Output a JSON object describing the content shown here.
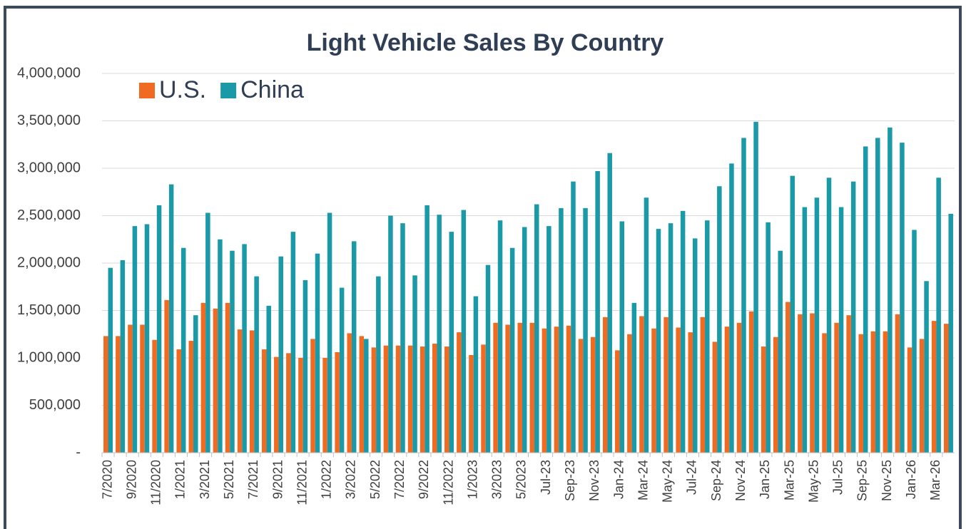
{
  "chart_data": {
    "type": "bar",
    "title": "Light Vehicle Sales By Country",
    "categories": [
      "7/2020",
      null,
      "9/2020",
      null,
      "11/2020",
      null,
      "1/2021",
      null,
      "3/2021",
      null,
      "5/2021",
      null,
      "7/2021",
      null,
      "9/2021",
      null,
      "11/2021",
      null,
      "1/2022",
      null,
      "3/2022",
      null,
      "5/2022",
      null,
      "7/2022",
      null,
      "9/2022",
      null,
      "11/2022",
      null,
      "1/2023",
      null,
      "3/2023",
      null,
      "5/2023",
      null,
      "Jul-23",
      null,
      "Sep-23",
      null,
      "Nov-23",
      null,
      "Jan-24",
      null,
      "Mar-24",
      null,
      "May-24",
      null,
      "Jul-24",
      null,
      "Sep-24",
      null,
      "Nov-24",
      null,
      "Jan-25",
      null,
      "Mar-25",
      null,
      "May-25",
      null,
      "Jul-25",
      null,
      "Sep-25",
      null,
      "Nov-25",
      null,
      "Jan-26",
      null,
      "Mar-26",
      null
    ],
    "series": [
      {
        "name": "U.S.",
        "color": "#f06a22",
        "values": [
          1230000,
          1230000,
          1350000,
          1350000,
          1190000,
          1610000,
          1090000,
          1180000,
          1580000,
          1520000,
          1580000,
          1300000,
          1290000,
          1090000,
          1010000,
          1050000,
          1000000,
          1200000,
          1000000,
          1060000,
          1260000,
          1230000,
          1110000,
          1130000,
          1130000,
          1130000,
          1120000,
          1150000,
          1120000,
          1270000,
          1030000,
          1140000,
          1370000,
          1350000,
          1370000,
          1370000,
          1310000,
          1330000,
          1340000,
          1200000,
          1220000,
          1430000,
          1080000,
          1250000,
          1440000,
          1310000,
          1430000,
          1320000,
          1270000,
          1430000,
          1170000,
          1330000,
          1370000,
          1490000,
          1120000,
          1220000,
          1590000,
          1460000,
          1470000,
          1260000,
          1370000,
          1450000,
          1250000,
          1280000,
          1280000,
          1460000,
          1110000,
          1200000,
          1390000,
          1360000
        ]
      },
      {
        "name": "China",
        "color": "#1a9aa6",
        "values": [
          1950000,
          2030000,
          2390000,
          2410000,
          2610000,
          2830000,
          2160000,
          1450000,
          2530000,
          2250000,
          2130000,
          2200000,
          1860000,
          1550000,
          2070000,
          2330000,
          1820000,
          2100000,
          2530000,
          1740000,
          2230000,
          1200000,
          1860000,
          2500000,
          2420000,
          1870000,
          2610000,
          2510000,
          2330000,
          2560000,
          1650000,
          1980000,
          2450000,
          2160000,
          2380000,
          2620000,
          2390000,
          2580000,
          2860000,
          2580000,
          2970000,
          3160000,
          2440000,
          1580000,
          2690000,
          2360000,
          2420000,
          2550000,
          2260000,
          2450000,
          2810000,
          3050000,
          3320000,
          3490000,
          2430000,
          2130000,
          2920000,
          2590000,
          2690000,
          2900000,
          2590000,
          2860000,
          3230000,
          3320000,
          3430000,
          3270000,
          2350000,
          1810000,
          2900000,
          2520000
        ]
      }
    ],
    "ylim": [
      0,
      4000000
    ],
    "yticks": [
      {
        "value": 0,
        "label": "-"
      },
      {
        "value": 500000,
        "label": "500,000"
      },
      {
        "value": 1000000,
        "label": "1,000,000"
      },
      {
        "value": 1500000,
        "label": "1,500,000"
      },
      {
        "value": 2000000,
        "label": "2,000,000"
      },
      {
        "value": 2500000,
        "label": "2,500,000"
      },
      {
        "value": 3000000,
        "label": "3,000,000"
      },
      {
        "value": 3500000,
        "label": "3,500,000"
      },
      {
        "value": 4000000,
        "label": "4,000,000"
      }
    ],
    "grid": true,
    "legend": "top-left"
  }
}
